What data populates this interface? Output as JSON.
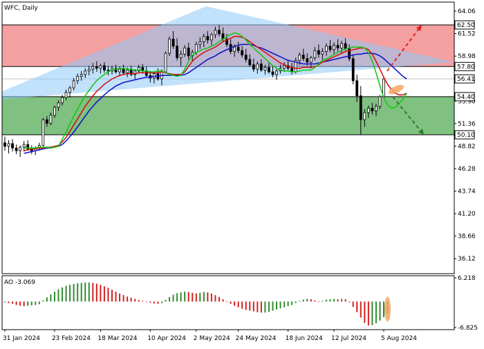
{
  "header": {
    "symbol": "WFC",
    "period": "Daily",
    "title": "WFC, Daily"
  },
  "colors": {
    "bg": "#ffffff",
    "candle": "#000000",
    "resistance_zone": "#f4a0a0",
    "support_zone": "#80c080",
    "triangle": "#90c8f8",
    "jaw": "#1414c8",
    "teeth": "#d21414",
    "lips": "#14c814",
    "ao_up": "#2e8b2e",
    "ao_down": "#d42020",
    "arrow_up": "#e02020",
    "arrow_down": "#208020",
    "highlight": "#f4a460"
  },
  "chart_data": [
    {
      "type": "candlestick",
      "name": "WFC, Daily",
      "ylim": [
        34.5,
        65.0
      ],
      "y_ticks": [
        "64.06",
        "61.52",
        "58.98",
        "56.41",
        "53.90",
        "51.36",
        "48.82",
        "46.28",
        "43.74",
        "41.20",
        "38.66",
        "36.12"
      ],
      "price_labels": [
        {
          "value": 62.5,
          "text": "62.50",
          "style": "box"
        },
        {
          "value": 57.8,
          "text": "57.80",
          "style": "box"
        },
        {
          "value": 56.41,
          "text": "56.41",
          "style": "box"
        },
        {
          "value": 54.4,
          "text": "54.40",
          "style": "box"
        },
        {
          "value": 50.1,
          "text": "50.10",
          "style": "box"
        }
      ],
      "zones": [
        {
          "name": "resistance",
          "from": 57.8,
          "to": 62.5
        },
        {
          "name": "support",
          "from": 50.1,
          "to": 54.4
        }
      ],
      "current_price": 56.41,
      "x_labels": [
        "31 Jan 2024",
        "23 Feb 2024",
        "18 Mar 2024",
        "10 Apr 2024",
        "2 May 2024",
        "24 May 2024",
        "18 Jun 2024",
        "12 Jul 2024",
        "5 Aug 2024"
      ],
      "candles": [
        [
          49.2,
          49.9,
          48.3,
          48.8
        ],
        [
          48.8,
          49.5,
          48.0,
          49.1
        ],
        [
          49.1,
          49.6,
          48.2,
          48.6
        ],
        [
          48.6,
          49.0,
          47.9,
          48.3
        ],
        [
          48.3,
          48.9,
          47.6,
          48.7
        ],
        [
          48.7,
          49.4,
          48.2,
          49.0
        ],
        [
          49.0,
          49.5,
          48.3,
          48.5
        ],
        [
          48.5,
          48.9,
          47.9,
          48.3
        ],
        [
          48.3,
          48.8,
          47.8,
          48.6
        ],
        [
          48.6,
          49.2,
          48.3,
          48.9
        ],
        [
          48.9,
          52.0,
          48.8,
          51.8
        ],
        [
          51.8,
          52.2,
          51.0,
          51.4
        ],
        [
          51.4,
          52.6,
          51.2,
          52.3
        ],
        [
          52.3,
          53.4,
          52.0,
          53.2
        ],
        [
          53.2,
          54.0,
          52.8,
          53.7
        ],
        [
          53.7,
          54.6,
          53.4,
          54.3
        ],
        [
          54.3,
          55.2,
          54.0,
          54.9
        ],
        [
          54.9,
          55.6,
          54.3,
          55.4
        ],
        [
          55.4,
          56.5,
          55.1,
          56.2
        ],
        [
          56.2,
          57.0,
          55.8,
          56.7
        ],
        [
          56.7,
          57.3,
          56.2,
          56.9
        ],
        [
          56.9,
          57.6,
          56.5,
          57.3
        ],
        [
          57.3,
          57.9,
          56.8,
          57.5
        ],
        [
          57.5,
          58.2,
          57.0,
          57.8
        ],
        [
          57.8,
          58.4,
          57.2,
          57.6
        ],
        [
          57.6,
          58.1,
          57.0,
          57.9
        ],
        [
          57.9,
          58.3,
          57.1,
          57.4
        ],
        [
          57.4,
          57.9,
          56.8,
          57.3
        ],
        [
          57.3,
          57.9,
          56.9,
          57.6
        ],
        [
          57.6,
          58.0,
          57.0,
          57.2
        ],
        [
          57.2,
          57.8,
          56.7,
          57.5
        ],
        [
          57.5,
          58.0,
          56.9,
          57.1
        ],
        [
          57.1,
          57.7,
          56.6,
          57.4
        ],
        [
          57.4,
          57.9,
          56.7,
          56.9
        ],
        [
          56.9,
          57.5,
          56.4,
          57.3
        ],
        [
          57.3,
          58.0,
          57.0,
          57.7
        ],
        [
          57.7,
          58.1,
          57.0,
          57.3
        ],
        [
          57.3,
          57.8,
          56.6,
          56.8
        ],
        [
          56.8,
          57.3,
          56.0,
          56.5
        ],
        [
          56.5,
          57.2,
          55.9,
          57.0
        ],
        [
          57.0,
          57.6,
          56.2,
          56.4
        ],
        [
          56.4,
          57.5,
          55.7,
          57.2
        ],
        [
          57.2,
          59.5,
          57.0,
          59.3
        ],
        [
          59.3,
          61.2,
          59.0,
          60.9
        ],
        [
          60.9,
          61.8,
          59.8,
          60.1
        ],
        [
          60.1,
          61.0,
          58.5,
          58.8
        ],
        [
          58.8,
          59.6,
          57.8,
          59.2
        ],
        [
          59.2,
          60.2,
          58.9,
          59.9
        ],
        [
          59.9,
          60.5,
          58.6,
          59.0
        ],
        [
          59.0,
          59.7,
          58.4,
          59.4
        ],
        [
          59.4,
          60.6,
          59.1,
          60.3
        ],
        [
          60.3,
          61.1,
          59.8,
          60.6
        ],
        [
          60.6,
          61.5,
          60.0,
          61.2
        ],
        [
          61.2,
          61.8,
          60.4,
          60.8
        ],
        [
          60.8,
          61.6,
          60.2,
          61.4
        ],
        [
          61.4,
          62.3,
          61.0,
          61.9
        ],
        [
          61.9,
          62.5,
          61.2,
          61.5
        ],
        [
          61.5,
          62.2,
          60.6,
          60.9
        ],
        [
          60.9,
          61.5,
          60.0,
          60.3
        ],
        [
          60.3,
          60.9,
          59.2,
          59.5
        ],
        [
          59.5,
          60.3,
          58.9,
          60.0
        ],
        [
          60.0,
          60.6,
          59.3,
          59.6
        ],
        [
          59.6,
          60.1,
          58.8,
          59.1
        ],
        [
          59.1,
          59.8,
          58.3,
          58.6
        ],
        [
          58.6,
          59.2,
          57.8,
          58.0
        ],
        [
          58.0,
          58.7,
          57.2,
          57.5
        ],
        [
          57.5,
          58.4,
          57.0,
          58.1
        ],
        [
          58.1,
          58.6,
          57.2,
          57.4
        ],
        [
          57.4,
          58.0,
          56.9,
          57.7
        ],
        [
          57.7,
          58.3,
          57.0,
          57.2
        ],
        [
          57.2,
          57.9,
          56.6,
          56.9
        ],
        [
          56.9,
          57.6,
          56.3,
          57.3
        ],
        [
          57.3,
          58.0,
          57.0,
          57.6
        ],
        [
          57.6,
          58.3,
          57.2,
          57.9
        ],
        [
          57.9,
          58.5,
          57.3,
          57.6
        ],
        [
          57.6,
          58.2,
          56.9,
          57.2
        ],
        [
          57.2,
          58.8,
          57.0,
          58.5
        ],
        [
          58.5,
          59.4,
          58.0,
          59.1
        ],
        [
          59.1,
          59.8,
          58.4,
          58.7
        ],
        [
          58.7,
          59.3,
          57.9,
          58.3
        ],
        [
          58.3,
          59.0,
          57.6,
          58.8
        ],
        [
          58.8,
          60.0,
          58.5,
          59.6
        ],
        [
          59.6,
          60.3,
          58.8,
          59.2
        ],
        [
          59.2,
          59.9,
          58.5,
          59.5
        ],
        [
          59.5,
          60.4,
          59.0,
          60.1
        ],
        [
          60.1,
          60.8,
          59.4,
          59.7
        ],
        [
          59.7,
          60.5,
          59.1,
          60.2
        ],
        [
          60.2,
          60.9,
          59.5,
          59.9
        ],
        [
          59.9,
          60.7,
          59.3,
          60.4
        ],
        [
          60.4,
          61.0,
          59.6,
          59.8
        ],
        [
          59.8,
          60.3,
          58.4,
          58.7
        ],
        [
          58.7,
          59.2,
          55.8,
          56.2
        ],
        [
          56.2,
          56.9,
          53.8,
          54.5
        ],
        [
          54.5,
          55.6,
          50.1,
          51.8
        ],
        [
          51.8,
          53.0,
          51.0,
          52.6
        ],
        [
          52.6,
          53.4,
          52.0,
          53.1
        ],
        [
          53.1,
          53.7,
          52.4,
          52.8
        ],
        [
          52.8,
          53.6,
          52.2,
          53.3
        ],
        [
          53.3,
          54.6,
          53.0,
          54.4
        ],
        [
          54.4,
          56.6,
          54.2,
          56.4
        ]
      ],
      "jaw": [
        48.0,
        48.1,
        48.2,
        48.3,
        48.4,
        48.5,
        48.6,
        48.6,
        48.7,
        48.8,
        49.0,
        49.4,
        49.9,
        50.4,
        51.0,
        51.6,
        52.2,
        52.8,
        53.3,
        53.8,
        54.2,
        54.6,
        55.0,
        55.3,
        55.6,
        55.8,
        56.0,
        56.1,
        56.2,
        56.3,
        56.4,
        56.5,
        56.6,
        56.6,
        56.7,
        56.7,
        56.8,
        56.8,
        56.8,
        56.8,
        56.8,
        56.8,
        56.9,
        57.1,
        57.4,
        57.7,
        58.0,
        58.3,
        58.6,
        58.8,
        59.0,
        59.3,
        59.5,
        59.7,
        59.9,
        60.1,
        60.2,
        60.3,
        60.3,
        60.3,
        60.2,
        60.0,
        59.9,
        59.7,
        59.5,
        59.3,
        59.1,
        58.9,
        58.7,
        58.5,
        58.4,
        58.3,
        58.2,
        58.1,
        58.1,
        58.1,
        58.1,
        58.2,
        58.3,
        58.4,
        58.5,
        58.6,
        58.7,
        58.8,
        58.9,
        59.0,
        59.1,
        59.2,
        59.2,
        59.3,
        59.3,
        59.3,
        59.2,
        59.0,
        58.7,
        58.3,
        57.9,
        57.5,
        57.1,
        56.7,
        56.4
      ],
      "teeth": [
        48.3,
        48.4,
        48.5,
        48.5,
        48.6,
        48.6,
        48.7,
        48.7,
        48.8,
        48.9,
        49.3,
        49.8,
        50.5,
        51.2,
        51.9,
        52.6,
        53.3,
        53.9,
        54.5,
        55.0,
        55.4,
        55.8,
        56.1,
        56.4,
        56.6,
        56.8,
        56.9,
        57.0,
        57.0,
        57.0,
        57.1,
        57.1,
        57.1,
        57.1,
        57.1,
        57.1,
        57.2,
        57.1,
        57.0,
        56.9,
        56.9,
        56.9,
        57.2,
        57.8,
        58.4,
        58.8,
        59.1,
        59.4,
        59.6,
        59.8,
        60.0,
        60.3,
        60.6,
        60.8,
        61.0,
        61.2,
        61.2,
        61.1,
        60.9,
        60.6,
        60.3,
        60.0,
        59.7,
        59.4,
        59.1,
        58.8,
        58.5,
        58.2,
        58.0,
        57.8,
        57.7,
        57.6,
        57.6,
        57.7,
        57.7,
        57.7,
        57.8,
        58.0,
        58.3,
        58.5,
        58.7,
        58.9,
        59.1,
        59.3,
        59.5,
        59.6,
        59.7,
        59.8,
        59.9,
        59.9,
        59.7,
        59.2,
        58.4,
        57.5,
        56.6,
        55.8,
        55.2,
        54.8,
        54.6,
        54.6,
        54.8
      ],
      "lips": [
        48.6,
        48.6,
        48.6,
        48.6,
        48.7,
        48.7,
        48.7,
        48.6,
        48.7,
        48.8,
        49.6,
        50.4,
        51.3,
        52.2,
        53.0,
        53.8,
        54.5,
        55.1,
        55.7,
        56.2,
        56.6,
        56.9,
        57.2,
        57.4,
        57.5,
        57.6,
        57.6,
        57.5,
        57.5,
        57.4,
        57.4,
        57.3,
        57.3,
        57.2,
        57.2,
        57.3,
        57.3,
        57.1,
        56.9,
        56.8,
        56.7,
        56.8,
        57.5,
        58.4,
        59.1,
        59.4,
        59.6,
        59.8,
        59.9,
        60.1,
        60.3,
        60.6,
        60.9,
        61.2,
        61.4,
        61.6,
        61.5,
        61.2,
        60.8,
        60.3,
        59.9,
        59.5,
        59.1,
        58.7,
        58.3,
        57.9,
        57.6,
        57.4,
        57.3,
        57.3,
        57.2,
        57.2,
        57.3,
        57.4,
        57.4,
        57.4,
        57.7,
        58.1,
        58.5,
        58.7,
        58.9,
        59.2,
        59.4,
        59.6,
        59.8,
        59.9,
        60.0,
        60.0,
        60.0,
        59.9,
        59.4,
        58.4,
        57.1,
        55.6,
        54.3,
        53.5,
        53.1,
        53.2,
        53.6,
        54.1,
        54.8
      ]
    },
    {
      "type": "bar",
      "name": "AO",
      "title": "AO -3.069",
      "y_ticks": [
        "6.218",
        "-6.825"
      ],
      "ylim": [
        -7.2,
        6.6
      ],
      "values": [
        -0.2,
        -0.4,
        -0.6,
        -0.9,
        -1.1,
        -1.2,
        -1.1,
        -1.0,
        -0.9,
        -0.7,
        0.3,
        1.1,
        1.9,
        2.6,
        3.2,
        3.7,
        4.1,
        4.4,
        4.6,
        4.8,
        4.9,
        5.0,
        5.0,
        4.9,
        4.7,
        4.4,
        4.0,
        3.6,
        3.1,
        2.6,
        2.1,
        1.7,
        1.3,
        1.0,
        0.7,
        0.4,
        0.2,
        -0.1,
        -0.3,
        -0.5,
        -0.6,
        -0.4,
        0.4,
        1.2,
        1.8,
        2.2,
        2.4,
        2.6,
        2.5,
        2.3,
        2.1,
        2.3,
        2.5,
        2.4,
        2.1,
        1.7,
        1.2,
        0.6,
        0.0,
        -0.6,
        -1.1,
        -1.5,
        -1.9,
        -2.2,
        -2.4,
        -2.6,
        -2.8,
        -2.9,
        -2.9,
        -2.7,
        -2.4,
        -2.1,
        -1.8,
        -1.5,
        -1.2,
        -0.9,
        -0.4,
        0.2,
        0.5,
        0.7,
        0.6,
        0.3,
        -0.1,
        0.2,
        0.5,
        0.6,
        0.7,
        0.6,
        0.7,
        0.6,
        -0.2,
        -1.4,
        -2.8,
        -4.2,
        -5.6,
        -6.3,
        -6.2,
        -5.7,
        -5.0,
        -4.1,
        -3.069
      ]
    }
  ]
}
